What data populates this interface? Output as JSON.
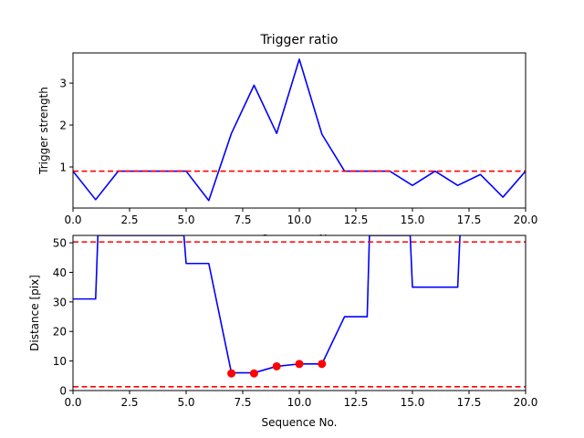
{
  "chart_data": [
    {
      "type": "line",
      "title": "Trigger ratio",
      "xlabel": "Sequence No.",
      "ylabel": "Trigger strength",
      "xlim": [
        0,
        20
      ],
      "ylim": [
        0.02,
        3.72
      ],
      "xticks": [
        "0.0",
        "2.5",
        "5.0",
        "7.5",
        "10.0",
        "12.5",
        "15.0",
        "17.5",
        "20.0"
      ],
      "yticks": [
        "1",
        "2",
        "3"
      ],
      "series": [
        {
          "color": "#0000ff",
          "x": [
            0,
            1,
            2,
            3,
            4,
            5,
            6,
            7,
            8,
            9,
            10,
            11,
            12,
            13,
            14,
            15,
            16,
            17,
            18,
            19,
            20
          ],
          "y": [
            0.9,
            0.22,
            0.9,
            0.9,
            0.9,
            0.9,
            0.2,
            1.8,
            2.95,
            1.8,
            3.57,
            1.78,
            0.9,
            0.9,
            0.9,
            0.56,
            0.9,
            0.56,
            0.82,
            0.28,
            0.9
          ]
        }
      ],
      "hlines": [
        {
          "y": 0.9,
          "color": "#ff0000",
          "style": "dashed"
        }
      ],
      "grid": false
    },
    {
      "type": "line",
      "title": "",
      "xlabel": "Sequence No.",
      "ylabel": "Distance [pix]",
      "xlim": [
        0,
        20
      ],
      "ylim": [
        0,
        52.5
      ],
      "xticks": [
        "0.0",
        "2.5",
        "5.0",
        "7.5",
        "10.0",
        "12.5",
        "15.0",
        "17.5",
        "20.0"
      ],
      "yticks": [
        "0",
        "10",
        "20",
        "30",
        "40",
        "50"
      ],
      "series": [
        {
          "color": "#0000ff",
          "x": [
            0,
            1,
            1.1,
            4.9,
            5.0,
            6,
            7,
            8,
            9,
            10,
            11,
            12,
            13,
            13.1,
            14.9,
            15,
            17,
            17.1
          ],
          "y": [
            31,
            31,
            52.5,
            52.5,
            43,
            43,
            6,
            6,
            8.2,
            9,
            9,
            25,
            25,
            52.5,
            52.5,
            35,
            35,
            52.5
          ]
        },
        {
          "color": "#ff0000",
          "marker": "circle",
          "x": [
            7,
            8,
            9,
            10,
            11
          ],
          "y": [
            5.8,
            5.8,
            8.2,
            9,
            9
          ]
        }
      ],
      "hlines": [
        {
          "y": 50.3,
          "color": "#ff0000",
          "style": "dashed"
        },
        {
          "y": 1.3,
          "color": "#ff0000",
          "style": "dashed"
        }
      ],
      "grid": false
    }
  ]
}
